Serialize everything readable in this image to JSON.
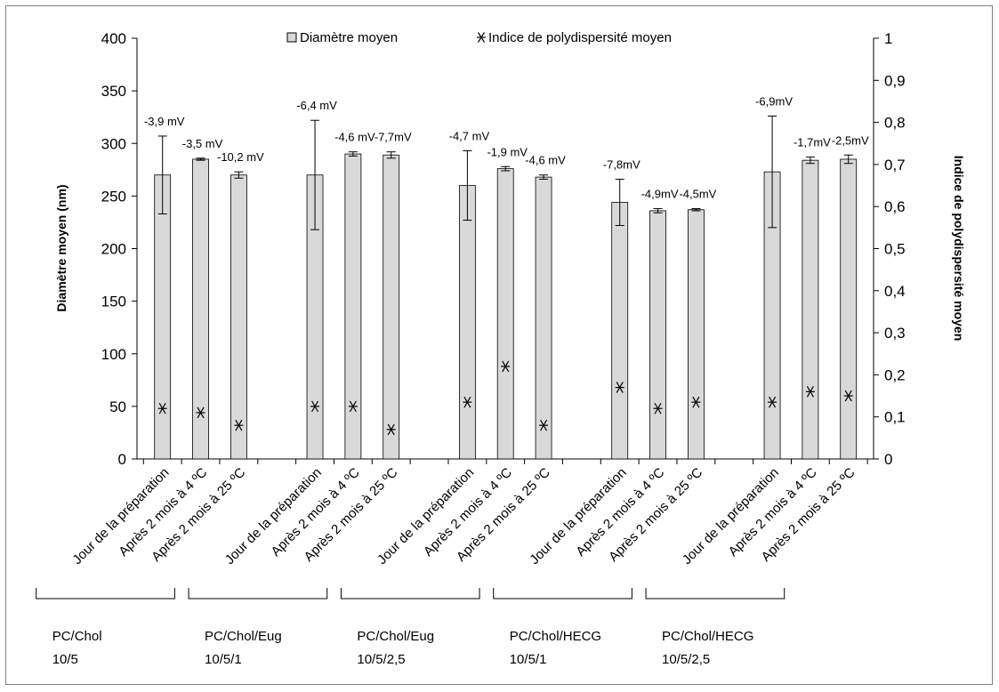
{
  "chart_data": {
    "type": "bar",
    "legend_position": "top",
    "grid": false,
    "categories": [
      "Jour de la préparation",
      "Après 2 mois à 4 ºC",
      "Après 2 mois à 25 ºC",
      "Jour de la préparation",
      "Après 2 mois à 4 ºC",
      "Après 2 mois à 25 ºC",
      "Jour de la préparation",
      "Après 2 mois à 4 ºC",
      "Après 2 mois à 25 ºC",
      "Jour de la préparation",
      "Après 2 mois à 4 ºC",
      "Après 2 mois à 25 ºC",
      "Jour de la préparation",
      "Après 2 mois à 4 ºC",
      "Après 2 mois à 25 ºC"
    ],
    "groups": [
      {
        "line1": "PC/Chol",
        "line2": "10/5"
      },
      {
        "line1": "PC/Chol/Eug",
        "line2": "10/5/1"
      },
      {
        "line1": "PC/Chol/Eug",
        "line2": "10/5/2,5"
      },
      {
        "line1": "PC/Chol/HECG",
        "line2": "10/5/1"
      },
      {
        "line1": "PC/Chol/HECG",
        "line2": "10/5/2,5"
      }
    ],
    "series": [
      {
        "name": "Diamètre moyen",
        "axis": "left",
        "values": [
          270,
          285,
          270,
          270,
          290,
          289,
          260,
          276,
          268,
          244,
          236,
          237,
          273,
          284,
          285
        ],
        "errors": [
          37,
          1,
          3,
          52,
          2,
          3,
          33,
          2,
          2,
          22,
          2,
          1,
          53,
          3,
          4
        ],
        "color": "#d9d9d9"
      },
      {
        "name": "Indice de polydispersité moyen",
        "axis": "right",
        "values": [
          0.12,
          0.11,
          0.08,
          0.125,
          0.125,
          0.07,
          0.135,
          0.22,
          0.08,
          0.17,
          0.12,
          0.135,
          0.135,
          0.16,
          0.15
        ]
      }
    ],
    "zeta_labels": [
      "-3,9 mV",
      "-3,5 mV",
      "-10,2 mV",
      "-6,4 mV",
      "-4,6 mV",
      "-7,7mV",
      "-4,7 mV",
      "-1,9 mV",
      "-4,6 mV",
      "-7,8mV",
      "-4,9mV",
      "-4,5mV",
      "-6,9mV",
      "-1,7mV",
      "-2,5mV"
    ],
    "ylabel": "Diamètre moyen (nm)",
    "y2label": "Indice de polydispersité  moyen",
    "ylim": [
      0,
      400
    ],
    "y2lim": [
      0,
      1
    ],
    "yticks": [
      "0",
      "50",
      "100",
      "150",
      "200",
      "250",
      "300",
      "350",
      "400"
    ],
    "y2ticks": [
      "0",
      "0,1",
      "0,2",
      "0,3",
      "0,4",
      "0,5",
      "0,6",
      "0,7",
      "0,8",
      "0,9",
      "1"
    ]
  }
}
